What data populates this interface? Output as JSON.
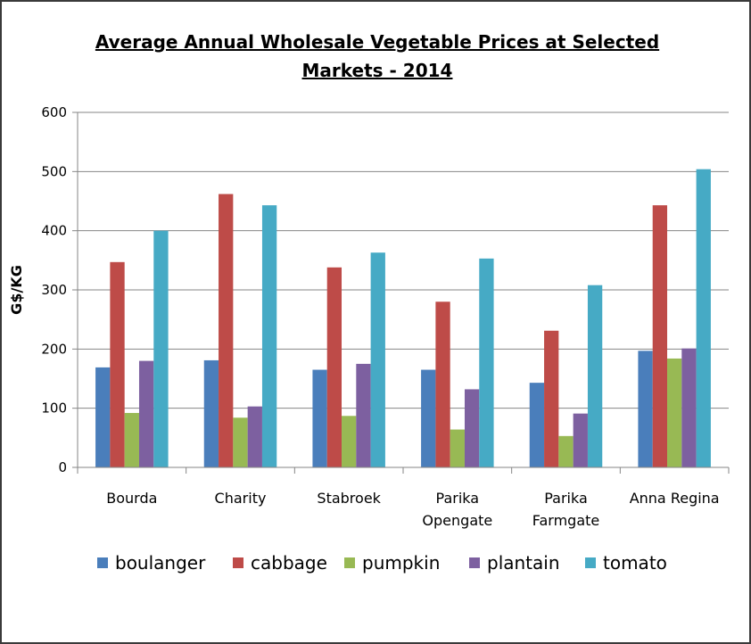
{
  "chart_data": {
    "type": "bar",
    "title_lines": [
      " Average Annual Wholesale Vegetable Prices at Selected",
      "Markets - 2014"
    ],
    "ylabel": "G$/KG",
    "xlabel": "",
    "ylim": [
      0,
      600
    ],
    "yticks": [
      0,
      100,
      200,
      300,
      400,
      500,
      600
    ],
    "grid": true,
    "legend_position": "bottom",
    "categories": [
      [
        "Bourda"
      ],
      [
        "Charity"
      ],
      [
        "Stabroek"
      ],
      [
        "Parika",
        "Opengate"
      ],
      [
        "Parika",
        "Farmgate"
      ],
      [
        "Anna Regina"
      ]
    ],
    "series": [
      {
        "name": "boulanger",
        "color": "#4a7ebb",
        "values": [
          169,
          181,
          165,
          165,
          143,
          197
        ]
      },
      {
        "name": "cabbage",
        "color": "#be4b48",
        "values": [
          347,
          462,
          338,
          280,
          231,
          443
        ]
      },
      {
        "name": "pumpkin",
        "color": "#98b954",
        "values": [
          92,
          84,
          87,
          64,
          53,
          184
        ]
      },
      {
        "name": "plantain",
        "color": "#7d60a0",
        "values": [
          180,
          103,
          175,
          132,
          91,
          201
        ]
      },
      {
        "name": "tomato",
        "color": "#46aac5",
        "values": [
          400,
          443,
          363,
          353,
          308,
          504
        ]
      }
    ]
  }
}
